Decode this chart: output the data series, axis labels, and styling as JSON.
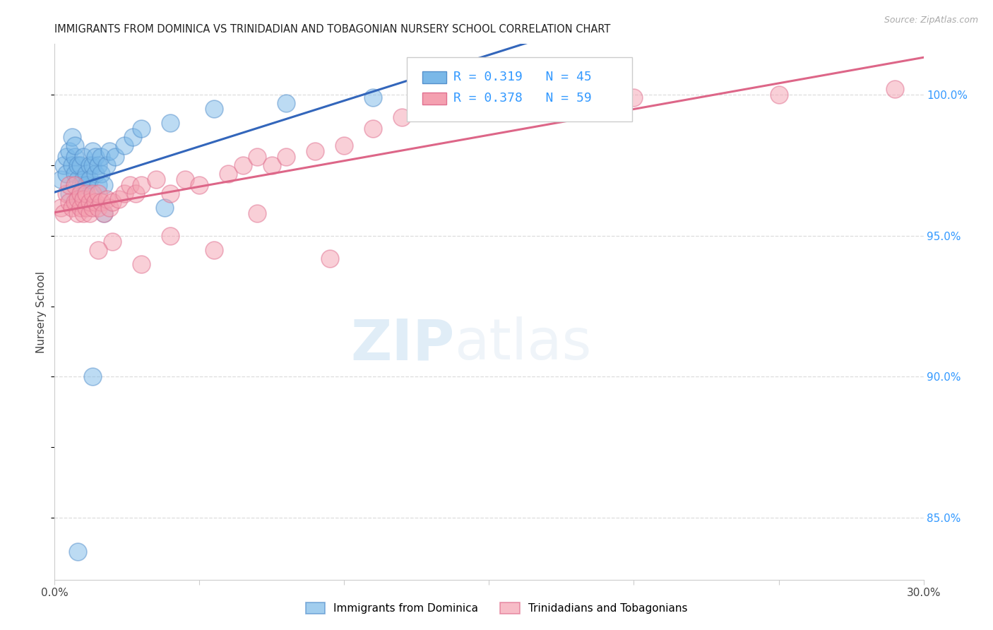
{
  "title": "IMMIGRANTS FROM DOMINICA VS TRINIDADIAN AND TOBAGONIAN NURSERY SCHOOL CORRELATION CHART",
  "source": "Source: ZipAtlas.com",
  "ylabel": "Nursery School",
  "xlim": [
    0.0,
    0.3
  ],
  "ylim": [
    0.828,
    1.018
  ],
  "xticks": [
    0.0,
    0.05,
    0.1,
    0.15,
    0.2,
    0.25,
    0.3
  ],
  "xticklabels": [
    "0.0%",
    "",
    "",
    "",
    "",
    "",
    "30.0%"
  ],
  "ytick_positions": [
    0.85,
    0.9,
    0.95,
    1.0
  ],
  "ytick_labels": [
    "85.0%",
    "90.0%",
    "95.0%",
    "100.0%"
  ],
  "blue_color": "#7ab8e8",
  "pink_color": "#f4a0b0",
  "blue_edge_color": "#5590cc",
  "pink_edge_color": "#e07090",
  "blue_line_color": "#3366bb",
  "pink_line_color": "#dd6688",
  "blue_r": "0.319",
  "blue_n": "45",
  "pink_r": "0.378",
  "pink_n": "59",
  "legend_text_color": "#3399ff",
  "legend_box_color": "#cccccc",
  "right_tick_color": "#3399ff",
  "blue_scatter_x": [
    0.002,
    0.003,
    0.004,
    0.004,
    0.005,
    0.005,
    0.006,
    0.006,
    0.007,
    0.007,
    0.007,
    0.008,
    0.008,
    0.009,
    0.009,
    0.01,
    0.01,
    0.011,
    0.011,
    0.012,
    0.012,
    0.013,
    0.013,
    0.014,
    0.014,
    0.015,
    0.015,
    0.016,
    0.016,
    0.017,
    0.018,
    0.019,
    0.021,
    0.024,
    0.027,
    0.03,
    0.04,
    0.055,
    0.08,
    0.11,
    0.13,
    0.038,
    0.017,
    0.013,
    0.008
  ],
  "blue_scatter_y": [
    0.97,
    0.975,
    0.972,
    0.978,
    0.965,
    0.98,
    0.975,
    0.985,
    0.972,
    0.978,
    0.982,
    0.97,
    0.975,
    0.968,
    0.975,
    0.97,
    0.978,
    0.972,
    0.968,
    0.975,
    0.97,
    0.975,
    0.98,
    0.972,
    0.978,
    0.968,
    0.975,
    0.972,
    0.978,
    0.968,
    0.975,
    0.98,
    0.978,
    0.982,
    0.985,
    0.988,
    0.99,
    0.995,
    0.997,
    0.999,
    1.0,
    0.96,
    0.958,
    0.9,
    0.838
  ],
  "pink_scatter_x": [
    0.002,
    0.003,
    0.004,
    0.005,
    0.005,
    0.006,
    0.007,
    0.007,
    0.008,
    0.008,
    0.009,
    0.009,
    0.01,
    0.01,
    0.011,
    0.011,
    0.012,
    0.012,
    0.013,
    0.013,
    0.014,
    0.015,
    0.015,
    0.016,
    0.017,
    0.018,
    0.019,
    0.02,
    0.022,
    0.024,
    0.026,
    0.028,
    0.03,
    0.035,
    0.04,
    0.045,
    0.05,
    0.06,
    0.065,
    0.07,
    0.075,
    0.08,
    0.09,
    0.1,
    0.11,
    0.12,
    0.14,
    0.16,
    0.18,
    0.2,
    0.25,
    0.29,
    0.095,
    0.055,
    0.04,
    0.03,
    0.02,
    0.015,
    0.07
  ],
  "pink_scatter_y": [
    0.96,
    0.958,
    0.965,
    0.962,
    0.968,
    0.96,
    0.962,
    0.968,
    0.958,
    0.963,
    0.96,
    0.965,
    0.958,
    0.963,
    0.96,
    0.965,
    0.958,
    0.962,
    0.96,
    0.965,
    0.962,
    0.96,
    0.965,
    0.962,
    0.958,
    0.963,
    0.96,
    0.962,
    0.963,
    0.965,
    0.968,
    0.965,
    0.968,
    0.97,
    0.965,
    0.97,
    0.968,
    0.972,
    0.975,
    0.978,
    0.975,
    0.978,
    0.98,
    0.982,
    0.988,
    0.992,
    0.995,
    0.996,
    0.998,
    0.999,
    1.0,
    1.002,
    0.942,
    0.945,
    0.95,
    0.94,
    0.948,
    0.945,
    0.958
  ],
  "blue_trendline_x0": 0.0,
  "blue_trendline_x1": 0.3,
  "pink_trendline_x0": 0.0,
  "pink_trendline_x1": 0.3,
  "grid_color": "#dddddd",
  "spine_color": "#cccccc"
}
